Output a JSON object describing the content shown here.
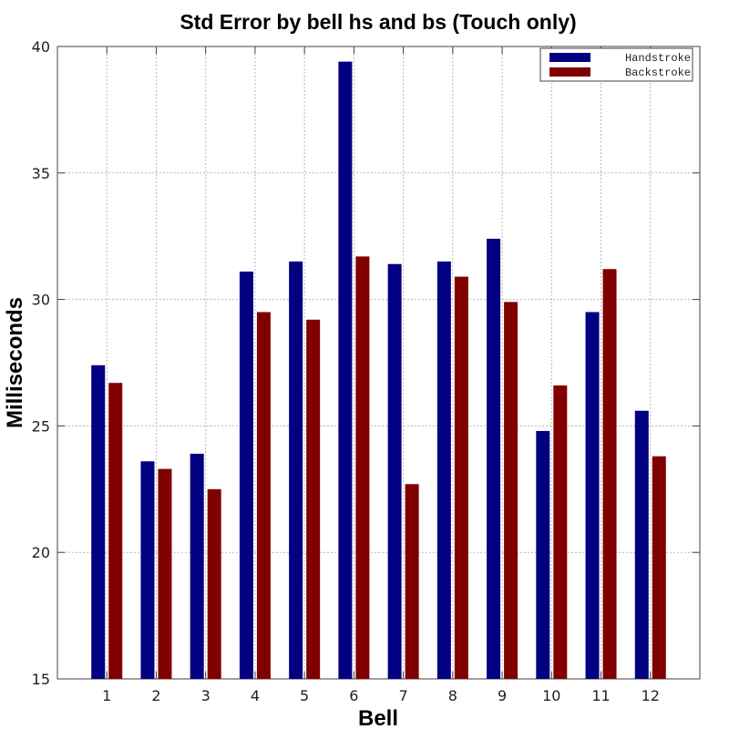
{
  "chart_data": {
    "type": "bar",
    "title": "Std Error by bell hs and bs (Touch only)",
    "xlabel": "Bell",
    "ylabel": "Milliseconds",
    "categories": [
      "1",
      "2",
      "3",
      "4",
      "5",
      "6",
      "7",
      "8",
      "9",
      "10",
      "11",
      "12"
    ],
    "ylim": [
      15,
      40
    ],
    "yticks": [
      15,
      20,
      25,
      30,
      35,
      40
    ],
    "ytick_labels": [
      "15",
      "20",
      "25",
      "30",
      "35",
      "40"
    ],
    "grid": true,
    "legend_position": "top-right",
    "series": [
      {
        "name": "Handstroke",
        "color": "#000080",
        "values": [
          27.4,
          23.6,
          23.9,
          31.1,
          31.5,
          39.4,
          31.4,
          31.5,
          32.4,
          24.8,
          29.5,
          25.6
        ]
      },
      {
        "name": "Backstroke",
        "color": "#800000",
        "values": [
          26.7,
          23.3,
          22.5,
          29.5,
          29.2,
          31.7,
          22.7,
          30.9,
          29.9,
          26.6,
          31.2,
          23.8
        ]
      }
    ]
  }
}
